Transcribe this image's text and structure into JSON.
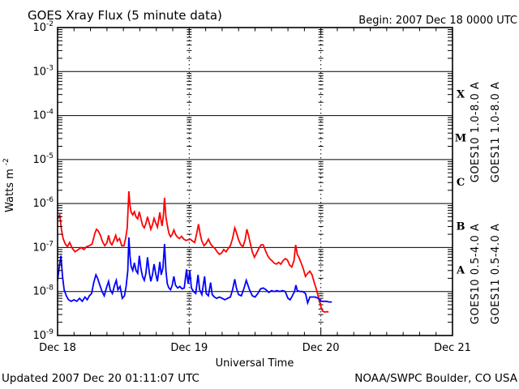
{
  "header": {
    "title": "GOES Xray Flux (5 minute data)",
    "begin_label": "Begin:  2007 Dec 18 0000 UTC"
  },
  "footer": {
    "updated": "Updated 2007 Dec 20 01:11:07 UTC",
    "source": "NOAA/SWPC Boulder, CO USA"
  },
  "colors": {
    "goes10_long": "#7222CC",
    "goes11_long": "#FF0000",
    "goes10_short": "#FFA500",
    "goes11_short": "#0000FF",
    "axis": "#000000",
    "background": "#FFFFFF"
  },
  "chart_data": {
    "type": "line",
    "title": "GOES Xray Flux (5 minute data)",
    "xlabel": "Universal Time",
    "ylabel_base": "Watts m",
    "ylabel_sup": "-2",
    "x_range_hours": [
      0,
      72
    ],
    "x_day_labels": [
      {
        "label": "Dec 18",
        "hour": 0
      },
      {
        "label": "Dec 19",
        "hour": 24
      },
      {
        "label": "Dec 20",
        "hour": 48
      },
      {
        "label": "Dec 21",
        "hour": 72
      }
    ],
    "x_minor_tick_hours": 3,
    "y_log_range": [
      -9,
      -2
    ],
    "y_tick_exponents": [
      -2,
      -3,
      -4,
      -5,
      -6,
      -7,
      -8,
      -9
    ],
    "grid": {
      "horizontal_solid_lines_at_exponents": [
        -3,
        -4,
        -5,
        -6,
        -7,
        -8
      ],
      "vertical_dotted_lines_at_hours": [
        24,
        48
      ],
      "legend_position": "right-margin-rotated"
    },
    "flare_classes": [
      {
        "label": "X",
        "midpoint_exponent": -3.5
      },
      {
        "label": "M",
        "midpoint_exponent": -4.5
      },
      {
        "label": "C",
        "midpoint_exponent": -5.5
      },
      {
        "label": "B",
        "midpoint_exponent": -6.5
      },
      {
        "label": "A",
        "midpoint_exponent": -7.5
      }
    ],
    "legend": [
      {
        "label": "GOES10 1.0-8.0 A",
        "color": "#7222CC",
        "column": 0,
        "group": "long"
      },
      {
        "label": "GOES11 1.0-8.0 A",
        "color": "#FF0000",
        "column": 1,
        "group": "long"
      },
      {
        "label": "GOES10 0.5-4.0 A",
        "color": "#FFA500",
        "column": 0,
        "group": "short"
      },
      {
        "label": "GOES11 0.5-4.0 A",
        "color": "#0000FF",
        "column": 1,
        "group": "short"
      }
    ],
    "series": [
      {
        "name": "GOES11 1.0-8.0 A",
        "color": "#FF0000",
        "points_hour_flux": [
          [
            0.0,
            4.5e-07
          ],
          [
            0.4,
            5.5e-07
          ],
          [
            0.7,
            2.6e-07
          ],
          [
            1.0,
            1.6e-07
          ],
          [
            1.4,
            1.2e-07
          ],
          [
            1.8,
            1.05e-07
          ],
          [
            2.2,
            1.3e-07
          ],
          [
            2.7,
            9.5e-08
          ],
          [
            3.2,
            8e-08
          ],
          [
            3.8,
            9e-08
          ],
          [
            4.3,
            1e-07
          ],
          [
            4.8,
            9e-08
          ],
          [
            5.3,
            1.05e-07
          ],
          [
            5.8,
            1.1e-07
          ],
          [
            6.3,
            1.2e-07
          ],
          [
            6.8,
            2.1e-07
          ],
          [
            7.1,
            2.6e-07
          ],
          [
            7.4,
            2.4e-07
          ],
          [
            7.8,
            1.9e-07
          ],
          [
            8.2,
            1.35e-07
          ],
          [
            8.6,
            1.1e-07
          ],
          [
            9.0,
            1.3e-07
          ],
          [
            9.3,
            1.9e-07
          ],
          [
            9.6,
            1.3e-07
          ],
          [
            9.9,
            1.15e-07
          ],
          [
            10.3,
            1.5e-07
          ],
          [
            10.6,
            1.9e-07
          ],
          [
            10.9,
            1.4e-07
          ],
          [
            11.3,
            1.6e-07
          ],
          [
            11.7,
            1.1e-07
          ],
          [
            12.1,
            1.1e-07
          ],
          [
            12.4,
            1.6e-07
          ],
          [
            12.7,
            2.8e-07
          ],
          [
            13.0,
            1.9e-06
          ],
          [
            13.2,
            9e-07
          ],
          [
            13.4,
            6.5e-07
          ],
          [
            13.7,
            5.5e-07
          ],
          [
            14.0,
            6.5e-07
          ],
          [
            14.3,
            5e-07
          ],
          [
            14.6,
            4.5e-07
          ],
          [
            14.9,
            6.5e-07
          ],
          [
            15.2,
            4.5e-07
          ],
          [
            15.5,
            3.2e-07
          ],
          [
            15.8,
            2.8e-07
          ],
          [
            16.1,
            3.5e-07
          ],
          [
            16.4,
            5e-07
          ],
          [
            16.7,
            3.6e-07
          ],
          [
            17.0,
            2.6e-07
          ],
          [
            17.3,
            3.3e-07
          ],
          [
            17.6,
            4.6e-07
          ],
          [
            17.9,
            3.6e-07
          ],
          [
            18.2,
            2.9e-07
          ],
          [
            18.45,
            4.4e-07
          ],
          [
            18.65,
            6.3e-07
          ],
          [
            18.85,
            4.2e-07
          ],
          [
            19.05,
            3.1e-07
          ],
          [
            19.3,
            5.5e-07
          ],
          [
            19.5,
            1.35e-06
          ],
          [
            19.75,
            5e-07
          ],
          [
            20.0,
            3.2e-07
          ],
          [
            20.3,
            2.1e-07
          ],
          [
            20.6,
            1.75e-07
          ],
          [
            20.9,
            2e-07
          ],
          [
            21.2,
            2.5e-07
          ],
          [
            21.5,
            2e-07
          ],
          [
            21.8,
            1.75e-07
          ],
          [
            22.2,
            1.6e-07
          ],
          [
            22.6,
            1.8e-07
          ],
          [
            23.0,
            1.55e-07
          ],
          [
            23.4,
            1.45e-07
          ],
          [
            23.8,
            1.5e-07
          ],
          [
            24.2,
            1.55e-07
          ],
          [
            24.6,
            1.4e-07
          ],
          [
            25.0,
            1.3e-07
          ],
          [
            25.4,
            2.2e-07
          ],
          [
            25.7,
            3.4e-07
          ],
          [
            26.0,
            2e-07
          ],
          [
            26.3,
            1.4e-07
          ],
          [
            26.7,
            1.1e-07
          ],
          [
            27.1,
            1.25e-07
          ],
          [
            27.5,
            1.55e-07
          ],
          [
            27.9,
            1.2e-07
          ],
          [
            28.3,
            1.05e-07
          ],
          [
            28.7,
            9.5e-08
          ],
          [
            29.1,
            8e-08
          ],
          [
            29.5,
            7e-08
          ],
          [
            29.9,
            7.5e-08
          ],
          [
            30.3,
            9e-08
          ],
          [
            30.7,
            8e-08
          ],
          [
            31.1,
            9.5e-08
          ],
          [
            31.5,
            1.1e-07
          ],
          [
            31.9,
            1.6e-07
          ],
          [
            32.3,
            2.8e-07
          ],
          [
            32.6,
            2.2e-07
          ],
          [
            33.0,
            1.5e-07
          ],
          [
            33.4,
            1.15e-07
          ],
          [
            33.8,
            1.05e-07
          ],
          [
            34.2,
            1.5e-07
          ],
          [
            34.5,
            2.6e-07
          ],
          [
            34.8,
            1.9e-07
          ],
          [
            35.1,
            1.3e-07
          ],
          [
            35.5,
            8e-08
          ],
          [
            35.9,
            6e-08
          ],
          [
            36.3,
            7.5e-08
          ],
          [
            36.7,
            9.5e-08
          ],
          [
            37.1,
            1.15e-07
          ],
          [
            37.5,
            1.15e-07
          ],
          [
            37.9,
            8.5e-08
          ],
          [
            38.3,
            6.5e-08
          ],
          [
            38.7,
            5.5e-08
          ],
          [
            39.1,
            5e-08
          ],
          [
            39.5,
            4.4e-08
          ],
          [
            39.9,
            4.2e-08
          ],
          [
            40.3,
            4.6e-08
          ],
          [
            40.7,
            4.2e-08
          ],
          [
            41.1,
            5e-08
          ],
          [
            41.5,
            5.6e-08
          ],
          [
            41.9,
            5.2e-08
          ],
          [
            42.3,
            4e-08
          ],
          [
            42.7,
            3.6e-08
          ],
          [
            43.1,
            5e-08
          ],
          [
            43.4,
            1.15e-07
          ],
          [
            43.7,
            7e-08
          ],
          [
            44.0,
            6e-08
          ],
          [
            44.4,
            4.5e-08
          ],
          [
            44.8,
            3.3e-08
          ],
          [
            45.2,
            2.2e-08
          ],
          [
            45.6,
            2.6e-08
          ],
          [
            46.0,
            2.9e-08
          ],
          [
            46.4,
            2.4e-08
          ],
          [
            46.8,
            1.6e-08
          ],
          [
            47.2,
            1.1e-08
          ],
          [
            47.6,
            7e-09
          ],
          [
            48.0,
            4.5e-09
          ],
          [
            48.3,
            3.6e-09
          ],
          [
            48.7,
            3.4e-09
          ],
          [
            49.1,
            3.5e-09
          ],
          [
            49.4,
            3.4e-09
          ]
        ]
      },
      {
        "name": "GOES11 0.5-4.0 A",
        "color": "#0000FF",
        "points_hour_flux": [
          [
            0.0,
            1.8e-08
          ],
          [
            0.3,
            3.5e-08
          ],
          [
            0.6,
            6.5e-08
          ],
          [
            0.9,
            2.2e-08
          ],
          [
            1.2,
            1.1e-08
          ],
          [
            1.6,
            8e-09
          ],
          [
            2.0,
            6.5e-09
          ],
          [
            2.5,
            6e-09
          ],
          [
            3.0,
            6.5e-09
          ],
          [
            3.5,
            6e-09
          ],
          [
            4.0,
            7e-09
          ],
          [
            4.5,
            6e-09
          ],
          [
            5.0,
            7.5e-09
          ],
          [
            5.4,
            6.5e-09
          ],
          [
            5.8,
            8e-09
          ],
          [
            6.2,
            9e-09
          ],
          [
            6.6,
            1.6e-08
          ],
          [
            7.0,
            2.4e-08
          ],
          [
            7.3,
            2e-08
          ],
          [
            7.7,
            1.4e-08
          ],
          [
            8.1,
            1e-08
          ],
          [
            8.5,
            8e-09
          ],
          [
            8.9,
            1.2e-08
          ],
          [
            9.3,
            1.7e-08
          ],
          [
            9.6,
            1.1e-08
          ],
          [
            10.0,
            9e-09
          ],
          [
            10.4,
            1.4e-08
          ],
          [
            10.7,
            1.8e-08
          ],
          [
            11.0,
            1.1e-08
          ],
          [
            11.4,
            1.3e-08
          ],
          [
            11.8,
            7e-09
          ],
          [
            12.2,
            8e-09
          ],
          [
            12.5,
            1.3e-08
          ],
          [
            12.8,
            3e-08
          ],
          [
            13.0,
            1.7e-07
          ],
          [
            13.2,
            6.5e-08
          ],
          [
            13.4,
            3.8e-08
          ],
          [
            13.7,
            3e-08
          ],
          [
            14.0,
            4.5e-08
          ],
          [
            14.3,
            3e-08
          ],
          [
            14.6,
            2.6e-08
          ],
          [
            14.9,
            6.5e-08
          ],
          [
            15.2,
            3.3e-08
          ],
          [
            15.5,
            2.2e-08
          ],
          [
            15.8,
            1.8e-08
          ],
          [
            16.1,
            2.6e-08
          ],
          [
            16.4,
            6e-08
          ],
          [
            16.7,
            2.8e-08
          ],
          [
            17.0,
            1.7e-08
          ],
          [
            17.3,
            2.4e-08
          ],
          [
            17.6,
            4.2e-08
          ],
          [
            17.9,
            2.5e-08
          ],
          [
            18.2,
            1.7e-08
          ],
          [
            18.45,
            3e-08
          ],
          [
            18.65,
            4.7e-08
          ],
          [
            18.9,
            2.4e-08
          ],
          [
            19.2,
            3.4e-08
          ],
          [
            19.5,
            1.2e-07
          ],
          [
            19.75,
            3e-08
          ],
          [
            20.0,
            1.5e-08
          ],
          [
            20.3,
            1.2e-08
          ],
          [
            20.6,
            1.1e-08
          ],
          [
            20.9,
            1.4e-08
          ],
          [
            21.2,
            2.2e-08
          ],
          [
            21.5,
            1.4e-08
          ],
          [
            21.9,
            1.2e-08
          ],
          [
            22.3,
            1.3e-08
          ],
          [
            22.7,
            1.15e-08
          ],
          [
            23.1,
            1.2e-08
          ],
          [
            23.5,
            3.2e-08
          ],
          [
            23.8,
            1.5e-08
          ],
          [
            24.1,
            3e-08
          ],
          [
            24.4,
            1.2e-08
          ],
          [
            24.8,
            1e-08
          ],
          [
            25.2,
            9e-09
          ],
          [
            25.6,
            2.4e-08
          ],
          [
            25.9,
            1.1e-08
          ],
          [
            26.3,
            8.5e-09
          ],
          [
            26.8,
            2.2e-08
          ],
          [
            27.1,
            9e-09
          ],
          [
            27.5,
            8e-09
          ],
          [
            27.9,
            1.6e-08
          ],
          [
            28.2,
            8.5e-09
          ],
          [
            28.6,
            7.5e-09
          ],
          [
            29.0,
            7e-09
          ],
          [
            29.5,
            7.5e-09
          ],
          [
            30.0,
            7e-09
          ],
          [
            30.5,
            6.5e-09
          ],
          [
            31.0,
            7e-09
          ],
          [
            31.5,
            7.5e-09
          ],
          [
            31.9,
            1.1e-08
          ],
          [
            32.3,
            1.9e-08
          ],
          [
            32.6,
            1.2e-08
          ],
          [
            33.0,
            8.5e-09
          ],
          [
            33.5,
            8e-09
          ],
          [
            34.0,
            1.2e-08
          ],
          [
            34.4,
            1.8e-08
          ],
          [
            34.7,
            1.4e-08
          ],
          [
            35.0,
            1.1e-08
          ],
          [
            35.5,
            8e-09
          ],
          [
            36.0,
            7.5e-09
          ],
          [
            36.5,
            9e-09
          ],
          [
            37.0,
            1.15e-08
          ],
          [
            37.5,
            1.2e-08
          ],
          [
            38.0,
            1.1e-08
          ],
          [
            38.5,
            9.5e-09
          ],
          [
            39.0,
            1.05e-08
          ],
          [
            39.5,
            1e-08
          ],
          [
            40.0,
            1.05e-08
          ],
          [
            40.5,
            1e-08
          ],
          [
            41.0,
            1.05e-08
          ],
          [
            41.5,
            1e-08
          ],
          [
            42.0,
            7e-09
          ],
          [
            42.4,
            6.5e-09
          ],
          [
            42.8,
            8e-09
          ],
          [
            43.2,
            1e-08
          ],
          [
            43.45,
            1.4e-08
          ],
          [
            43.7,
            1.05e-08
          ],
          [
            44.2,
            1e-08
          ],
          [
            44.7,
            1e-08
          ],
          [
            45.2,
            9e-09
          ],
          [
            45.6,
            5.5e-09
          ],
          [
            46.0,
            7.5e-09
          ],
          [
            46.5,
            7.5e-09
          ],
          [
            47.0,
            7.5e-09
          ],
          [
            47.5,
            7e-09
          ],
          [
            48.0,
            6e-09
          ],
          [
            48.5,
            6e-09
          ],
          [
            49.0,
            6e-09
          ],
          [
            49.5,
            5.8e-09
          ],
          [
            50.0,
            5.8e-09
          ]
        ]
      }
    ]
  }
}
